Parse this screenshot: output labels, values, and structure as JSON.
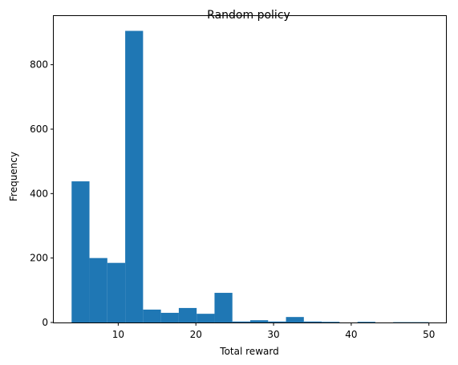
{
  "chart_data": {
    "type": "bar",
    "title": "Random policy",
    "xlabel": "Total reward",
    "ylabel": "Frequency",
    "bin_edges": [
      4.0,
      6.3,
      8.6,
      10.9,
      13.2,
      15.5,
      17.8,
      20.1,
      22.4,
      24.7,
      27.0,
      29.3,
      31.6,
      33.9,
      36.2,
      38.5,
      40.8,
      43.1,
      45.4,
      47.7,
      50.0
    ],
    "values": [
      438,
      200,
      185,
      905,
      40,
      30,
      45,
      27,
      92,
      3,
      7,
      3,
      17,
      3,
      2,
      0,
      2,
      0,
      1,
      1
    ],
    "xlim": [
      1.7,
      52.3
    ],
    "ylim": [
      0,
      951
    ],
    "xticks": [
      10,
      20,
      30,
      40,
      50
    ],
    "yticks": [
      0,
      200,
      400,
      600,
      800
    ],
    "bar_color": "#1f77b4",
    "grid": false
  }
}
